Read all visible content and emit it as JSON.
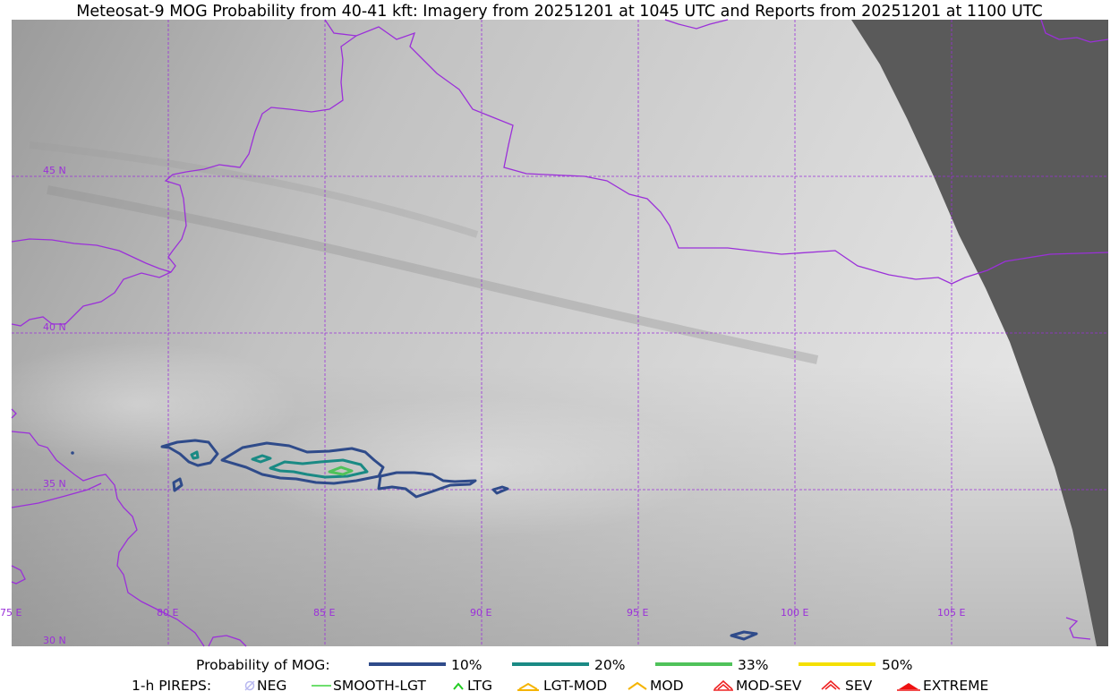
{
  "title": "Meteosat-9 MOG Probability from 40-41 kft: Imagery from 20251201 at 1045 UTC and Reports from 20251201 at 1100 UTC",
  "map": {
    "longitude_labels": [
      "75 E",
      "80 E",
      "85 E",
      "90 E",
      "95 E",
      "100 E",
      "105 E"
    ],
    "latitude_labels": [
      "45 N",
      "40 N",
      "35 N",
      "30 N"
    ],
    "colors": {
      "grid_and_borders": "#9b30d9",
      "no_data": "#5a5a5a",
      "contour_10": "#2f4b8a",
      "contour_20": "#1a8a84",
      "contour_33": "#4fc25a",
      "contour_50": "#f5e000"
    }
  },
  "legend": {
    "probability_title": "Probability of MOG:",
    "probability_items": [
      {
        "label": "10%",
        "color": "#2f4b8a"
      },
      {
        "label": "20%",
        "color": "#1a8a84"
      },
      {
        "label": "33%",
        "color": "#4fc25a"
      },
      {
        "label": "50%",
        "color": "#f5e000"
      }
    ],
    "pireps_title": "1-h PIREPS:",
    "pirep_items": [
      {
        "label": "NEG",
        "icon": "neg-icon",
        "color": "#b9b9f0"
      },
      {
        "label": "SMOOTH-LGT",
        "icon": "smooth-lgt-line-icon",
        "color": "#3fd33f"
      },
      {
        "label": "LTG",
        "icon": "ltg-chevron-icon",
        "color": "#22cc22"
      },
      {
        "label": "LGT-MOD",
        "icon": "lgt-mod-icon",
        "color": "#f5b400"
      },
      {
        "label": "MOD",
        "icon": "mod-chevron-icon",
        "color": "#f5b400"
      },
      {
        "label": "MOD-SEV",
        "icon": "mod-sev-icon",
        "color": "#ee2222"
      },
      {
        "label": "SEV",
        "icon": "sev-icon",
        "color": "#ee2222"
      },
      {
        "label": "EXTREME",
        "icon": "extreme-icon",
        "color": "#ee1111"
      }
    ]
  }
}
